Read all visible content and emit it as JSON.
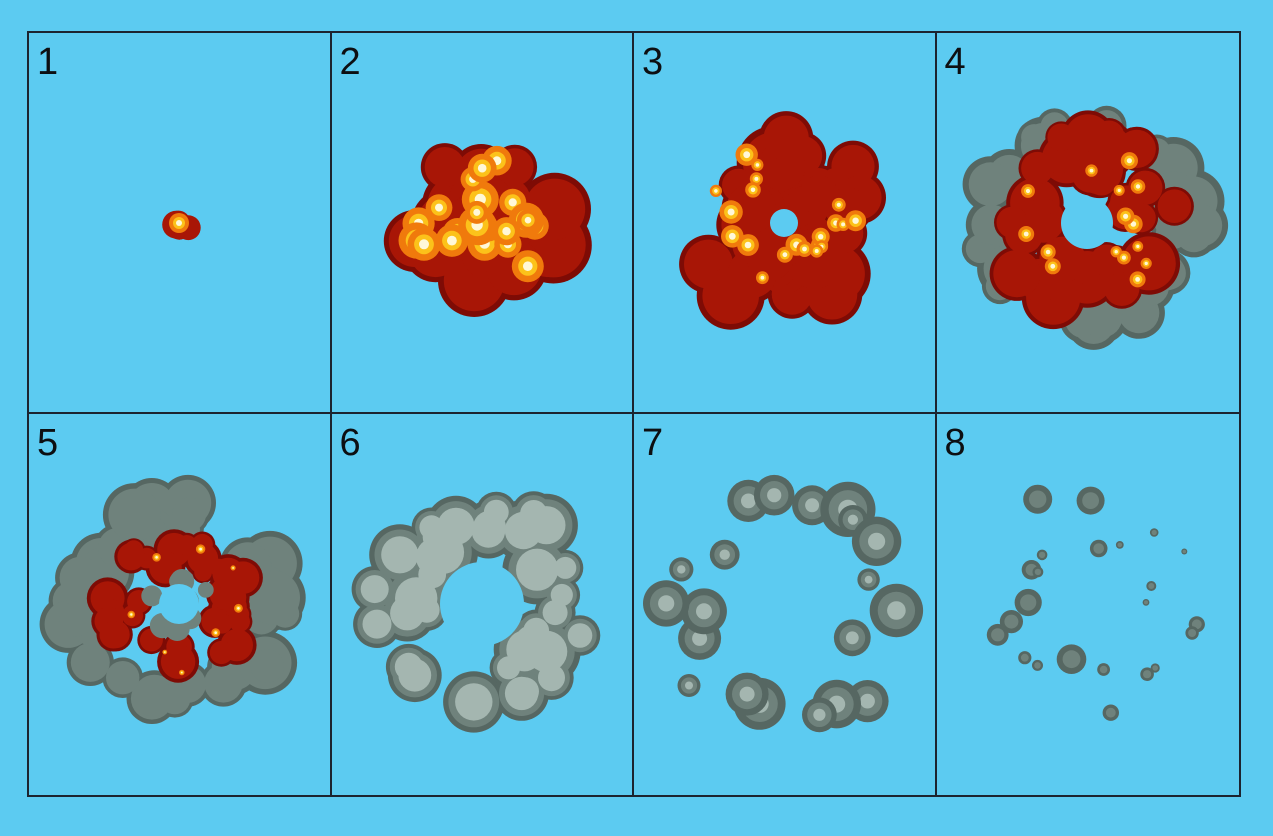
{
  "frames": [
    {
      "number": "1",
      "stage": "spark"
    },
    {
      "number": "2",
      "stage": "fireball"
    },
    {
      "number": "3",
      "stage": "expanding-fire"
    },
    {
      "number": "4",
      "stage": "fire-with-smoke"
    },
    {
      "number": "5",
      "stage": "smoke-ring-with-embers"
    },
    {
      "number": "6",
      "stage": "smoke-ring"
    },
    {
      "number": "7",
      "stage": "dispersing-smoke"
    },
    {
      "number": "8",
      "stage": "fading-smoke"
    }
  ],
  "colors": {
    "background": "#5ccbf1",
    "grid_line": "#1c2430",
    "fire_dark": "#7e0b05",
    "fire_red": "#a81606",
    "fire_orange": "#f07a0c",
    "fire_yellow": "#fcc21a",
    "fire_white": "#fff8d8",
    "smoke_dark": "#566762",
    "smoke_mid": "#6f827c",
    "smoke_light": "#a4b6b0"
  }
}
